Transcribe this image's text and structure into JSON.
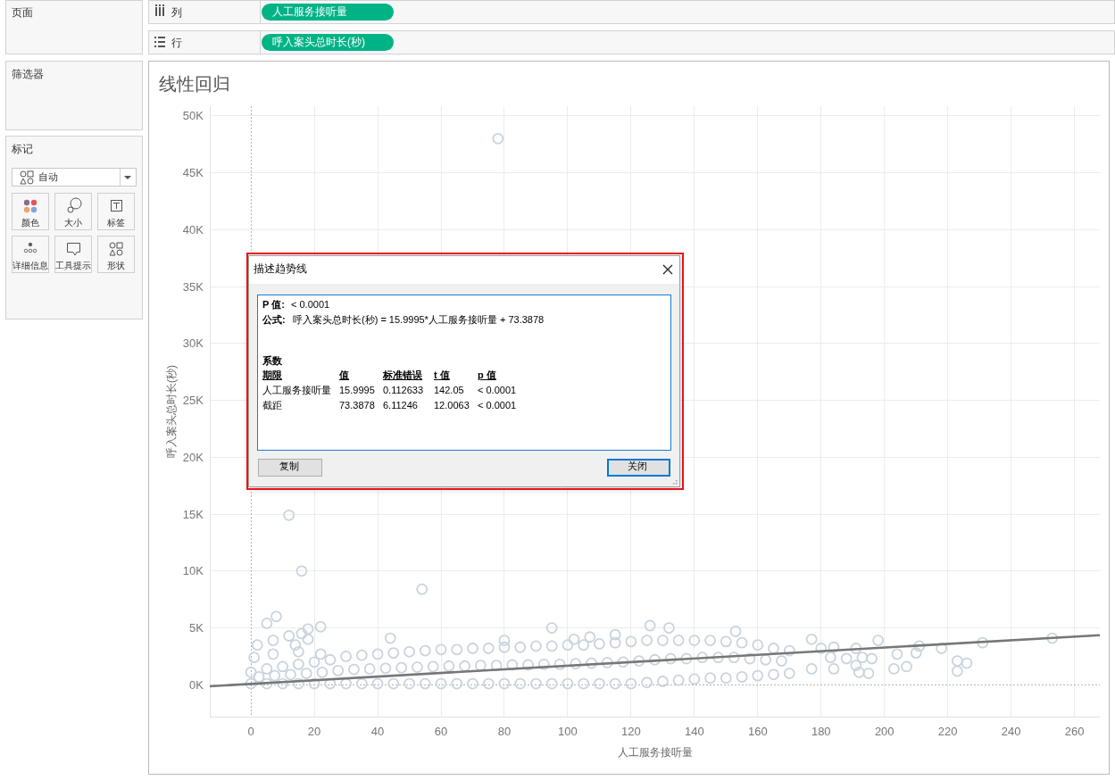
{
  "chart_data": {
    "type": "scatter",
    "title": "线性回归",
    "xlabel": "人工服务接听量",
    "ylabel": "呼入案头总时长(秒)",
    "xlim": [
      -13,
      268
    ],
    "ylim": [
      -2800,
      50850
    ],
    "xticks": [
      0,
      20,
      40,
      60,
      80,
      100,
      120,
      140,
      160,
      180,
      200,
      220,
      240,
      260
    ],
    "yticks": [
      {
        "value": 0,
        "label": "0K"
      },
      {
        "value": 5000,
        "label": "5K"
      },
      {
        "value": 10000,
        "label": "10K"
      },
      {
        "value": 15000,
        "label": "15K"
      },
      {
        "value": 20000,
        "label": "20K"
      },
      {
        "value": 25000,
        "label": "25K"
      },
      {
        "value": 30000,
        "label": "30K"
      },
      {
        "value": 35000,
        "label": "35K"
      },
      {
        "value": 40000,
        "label": "40K"
      },
      {
        "value": 45000,
        "label": "45K"
      },
      {
        "value": 50000,
        "label": "50K"
      }
    ],
    "grid": true,
    "series": [
      {
        "color": "#c9d3dd",
        "marker": "circle",
        "x": [
          0,
          5,
          10,
          15,
          20,
          25,
          30,
          35,
          40,
          45,
          50,
          55,
          60,
          65,
          70,
          75,
          80,
          85,
          90,
          95,
          100,
          105,
          110,
          115,
          120,
          125,
          130,
          135,
          140,
          145,
          150,
          155,
          160,
          165,
          170,
          0,
          5,
          10,
          15,
          20,
          25,
          30,
          35,
          40,
          45,
          50,
          55,
          60,
          65,
          70,
          75,
          80,
          85,
          90,
          95,
          100,
          105,
          110,
          115,
          120,
          125,
          130,
          135,
          140,
          145,
          150,
          155,
          160,
          165,
          170,
          2.5,
          7.5,
          12.5,
          17.5,
          22.5,
          27.5,
          32.5,
          37.5,
          42.5,
          47.5,
          52.5,
          57.5,
          62.5,
          67.5,
          72.5,
          77.5,
          82.5,
          87.5,
          92.5,
          97.5,
          102.5,
          107.5,
          112.5,
          117.5,
          122.5,
          127.5,
          132.5,
          137.5,
          142.5,
          147.5,
          152.5,
          157.5,
          162.5,
          167.5,
          78,
          12,
          16,
          54,
          8,
          5,
          22,
          18,
          16,
          12,
          7,
          18,
          2,
          14,
          44,
          95,
          15,
          7,
          1,
          22,
          102,
          107,
          80,
          115,
          126,
          132,
          153,
          177,
          184,
          180,
          183,
          177,
          184,
          191,
          198,
          193,
          196,
          188,
          191,
          192,
          195,
          204,
          203,
          207,
          210,
          211,
          218,
          223,
          226,
          223,
          231,
          253
        ],
        "values": [
          100,
          100,
          100,
          100,
          100,
          100,
          100,
          100,
          100,
          100,
          100,
          100,
          100,
          100,
          100,
          100,
          100,
          100,
          100,
          100,
          100,
          100,
          100,
          100,
          100,
          200,
          300,
          400,
          500,
          600,
          600,
          700,
          800,
          900,
          1000,
          1100,
          1400,
          1600,
          1800,
          2000,
          2200,
          2500,
          2600,
          2700,
          2800,
          2900,
          3000,
          3100,
          3100,
          3200,
          3200,
          3300,
          3300,
          3400,
          3400,
          3500,
          3500,
          3600,
          3700,
          3800,
          3900,
          3900,
          3900,
          3900,
          3900,
          3800,
          3700,
          3500,
          3200,
          3000,
          700,
          800,
          900,
          1000,
          1100,
          1250,
          1350,
          1400,
          1450,
          1500,
          1550,
          1600,
          1650,
          1650,
          1700,
          1700,
          1750,
          1750,
          1800,
          1800,
          1850,
          1900,
          1950,
          2000,
          2100,
          2200,
          2300,
          2300,
          2400,
          2400,
          2400,
          2300,
          2200,
          2100,
          48000,
          14900,
          10000,
          8400,
          6000,
          5400,
          5100,
          4900,
          4500,
          4300,
          3900,
          4000,
          3500,
          3500,
          4100,
          5000,
          2900,
          2700,
          2400,
          2700,
          4000,
          4200,
          3900,
          4400,
          5200,
          5000,
          4700,
          4000,
          3300,
          3200,
          2400,
          1400,
          1400,
          3200,
          3900,
          2400,
          2300,
          2300,
          1700,
          1100,
          1000,
          2700,
          1400,
          1600,
          2800,
          3400,
          3200,
          2100,
          1900,
          1200,
          3700,
          4100
        ]
      },
      {
        "type": "line",
        "color": "#777777",
        "x": [
          -13,
          268
        ],
        "values": [
          -130,
          4360
        ]
      }
    ],
    "annotations": [
      "页面",
      "筛选器",
      "标记",
      "自动",
      "颜色",
      "大小",
      "标签",
      "详细信息",
      "工具提示",
      "形状",
      "列",
      "行",
      "人工服务接听量",
      "呼入案头总时长(秒)",
      "描述趋势线",
      "P 值:",
      "< 0.0001",
      "公式:",
      "呼入案头总时长(秒) = 15.9995*人工服务接听量 + 73.3878",
      "系数",
      "期限",
      "值",
      "标准错误",
      "t 值",
      "p 值",
      "人工服务接听量",
      "15.9995",
      "0.112633",
      "142.05",
      "< 0.0001",
      "截距",
      "73.3878",
      "6.11246",
      "12.0063",
      "< 0.0001",
      "复制",
      "关闭"
    ]
  }
}
